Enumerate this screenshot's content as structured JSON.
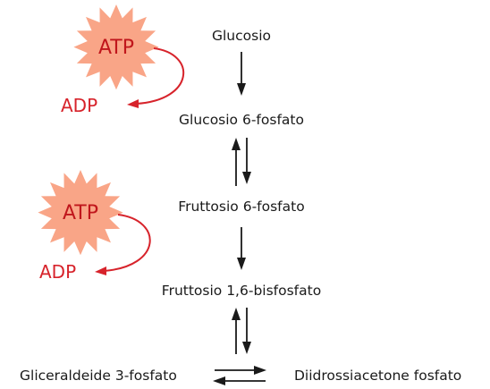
{
  "pathway": {
    "metabolites": {
      "glucose": "Glucosio",
      "glucose_6p": "Glucosio 6-fosfato",
      "fructose_6p": "Fruttosio 6-fosfato",
      "fructose_16bp": "Fruttosio 1,6-bisfosfato",
      "gap": "Gliceraldeide 3-fosfato",
      "dhap": "Diidrossiacetone fosfato"
    },
    "cofactors": {
      "first": {
        "in": "ATP",
        "out": "ADP"
      },
      "second": {
        "in": "ATP",
        "out": "ADP"
      }
    }
  },
  "colors": {
    "burst": "#f9a587",
    "atp_text": "#c0161c",
    "adp_and_arrow": "#d7232b",
    "text": "#1a1a1a"
  }
}
